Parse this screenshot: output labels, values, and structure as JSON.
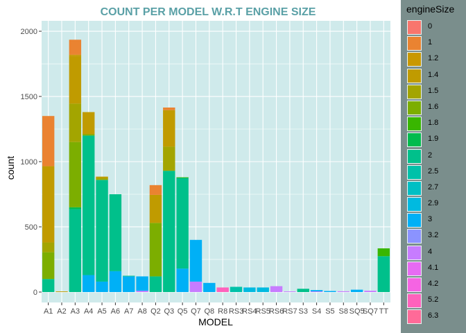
{
  "chart_data": {
    "type": "bar",
    "stacked": true,
    "title": "COUNT PER  MODEL W.R.T ENGINE SIZE",
    "xlabel": "MODEL",
    "ylabel": "count",
    "ylim": [
      -80,
      2080
    ],
    "yticks": [
      0,
      500,
      1000,
      1500,
      2000
    ],
    "grid": true,
    "legend_title": "engineSize",
    "legend_position": "right",
    "colors": {
      "panel": "#cfeaeb",
      "grid": "#ffffff",
      "title": "#5aa0a6",
      "legend_bg": "#7a8e8c"
    },
    "categories": [
      "A1",
      "A2",
      "A3",
      "A4",
      "A5",
      "A6",
      "A7",
      "A8",
      "Q2",
      "Q3",
      "Q5",
      "Q7",
      "Q8",
      "R8",
      "RS3",
      "RS4",
      "RS5",
      "RS6",
      "RS7",
      "S3",
      "S4",
      "S5",
      "S8",
      "SQ5",
      "SQ7",
      "TT"
    ],
    "engine_sizes": [
      {
        "name": "0",
        "color": "#f8766d"
      },
      {
        "name": "1",
        "color": "#ea8331"
      },
      {
        "name": "1.2",
        "color": "#c99800"
      },
      {
        "name": "1.4",
        "color": "#c09b00"
      },
      {
        "name": "1.5",
        "color": "#a3a500"
      },
      {
        "name": "1.6",
        "color": "#7cae00"
      },
      {
        "name": "1.8",
        "color": "#39b600"
      },
      {
        "name": "1.9",
        "color": "#00bb4e"
      },
      {
        "name": "2",
        "color": "#00c08b"
      },
      {
        "name": "2.5",
        "color": "#00c1a9"
      },
      {
        "name": "2.7",
        "color": "#00bfc4"
      },
      {
        "name": "2.9",
        "color": "#00bae0"
      },
      {
        "name": "3",
        "color": "#00b0f6"
      },
      {
        "name": "3.2",
        "color": "#8b93ff"
      },
      {
        "name": "4",
        "color": "#c77cff"
      },
      {
        "name": "4.1",
        "color": "#e76bf3"
      },
      {
        "name": "4.2",
        "color": "#f564e3"
      },
      {
        "name": "5.2",
        "color": "#ff62bc"
      },
      {
        "name": "6.3",
        "color": "#ff6a98"
      }
    ],
    "segments": {
      "A1": [
        {
          "size": "2",
          "value": 100
        },
        {
          "size": "1.6",
          "value": 205
        },
        {
          "size": "1.5",
          "value": 75
        },
        {
          "size": "1.4",
          "value": 585
        },
        {
          "size": "1",
          "value": 385
        }
      ],
      "A2": [
        {
          "size": "1.4",
          "value": 5
        }
      ],
      "A3": [
        {
          "size": "2",
          "value": 635
        },
        {
          "size": "1.9",
          "value": 15
        },
        {
          "size": "1.6",
          "value": 20
        },
        {
          "size": "1.6",
          "value": 480
        },
        {
          "size": "1.5",
          "value": 295
        },
        {
          "size": "1.4",
          "value": 365
        },
        {
          "size": "1.2",
          "value": 10
        },
        {
          "size": "1",
          "value": 115
        }
      ],
      "A4": [
        {
          "size": "3",
          "value": 130
        },
        {
          "size": "2",
          "value": 1070
        },
        {
          "size": "1.6",
          "value": 10
        },
        {
          "size": "1.4",
          "value": 170
        }
      ],
      "A5": [
        {
          "size": "3",
          "value": 80
        },
        {
          "size": "2",
          "value": 780
        },
        {
          "size": "1.5",
          "value": 15
        },
        {
          "size": "1.4",
          "value": 10
        }
      ],
      "A6": [
        {
          "size": "3",
          "value": 160
        },
        {
          "size": "2",
          "value": 590
        }
      ],
      "A7": [
        {
          "size": "3",
          "value": 120
        },
        {
          "size": "2",
          "value": 5
        }
      ],
      "A8": [
        {
          "size": "4",
          "value": 10
        },
        {
          "size": "3",
          "value": 110
        }
      ],
      "Q2": [
        {
          "size": "2",
          "value": 120
        },
        {
          "size": "1.6",
          "value": 410
        },
        {
          "size": "1.4",
          "value": 215
        },
        {
          "size": "1",
          "value": 75
        }
      ],
      "Q3": [
        {
          "size": "2",
          "value": 930
        },
        {
          "size": "1.5",
          "value": 185
        },
        {
          "size": "1.4",
          "value": 280
        },
        {
          "size": "1",
          "value": 20
        }
      ],
      "Q5": [
        {
          "size": "3",
          "value": 180
        },
        {
          "size": "2",
          "value": 695
        },
        {
          "size": "1.8",
          "value": 5
        }
      ],
      "Q7": [
        {
          "size": "4",
          "value": 80
        },
        {
          "size": "3",
          "value": 320
        }
      ],
      "Q8": [
        {
          "size": "3",
          "value": 70
        }
      ],
      "R8": [
        {
          "size": "5.2",
          "value": 35
        }
      ],
      "RS3": [
        {
          "size": "2.5",
          "value": 40
        }
      ],
      "RS4": [
        {
          "size": "2.9",
          "value": 35
        }
      ],
      "RS5": [
        {
          "size": "2.9",
          "value": 35
        }
      ],
      "RS6": [
        {
          "size": "4",
          "value": 45
        }
      ],
      "RS7": [
        {
          "size": "4",
          "value": 5
        }
      ],
      "S3": [
        {
          "size": "2",
          "value": 25
        }
      ],
      "S4": [
        {
          "size": "4",
          "value": 5
        },
        {
          "size": "3",
          "value": 10
        }
      ],
      "S5": [
        {
          "size": "3",
          "value": 8
        }
      ],
      "S8": [
        {
          "size": "4",
          "value": 6
        }
      ],
      "SQ5": [
        {
          "size": "3",
          "value": 18
        }
      ],
      "SQ7": [
        {
          "size": "4",
          "value": 10
        }
      ],
      "TT": [
        {
          "size": "2",
          "value": 275
        },
        {
          "size": "1.8",
          "value": 60
        }
      ]
    }
  }
}
